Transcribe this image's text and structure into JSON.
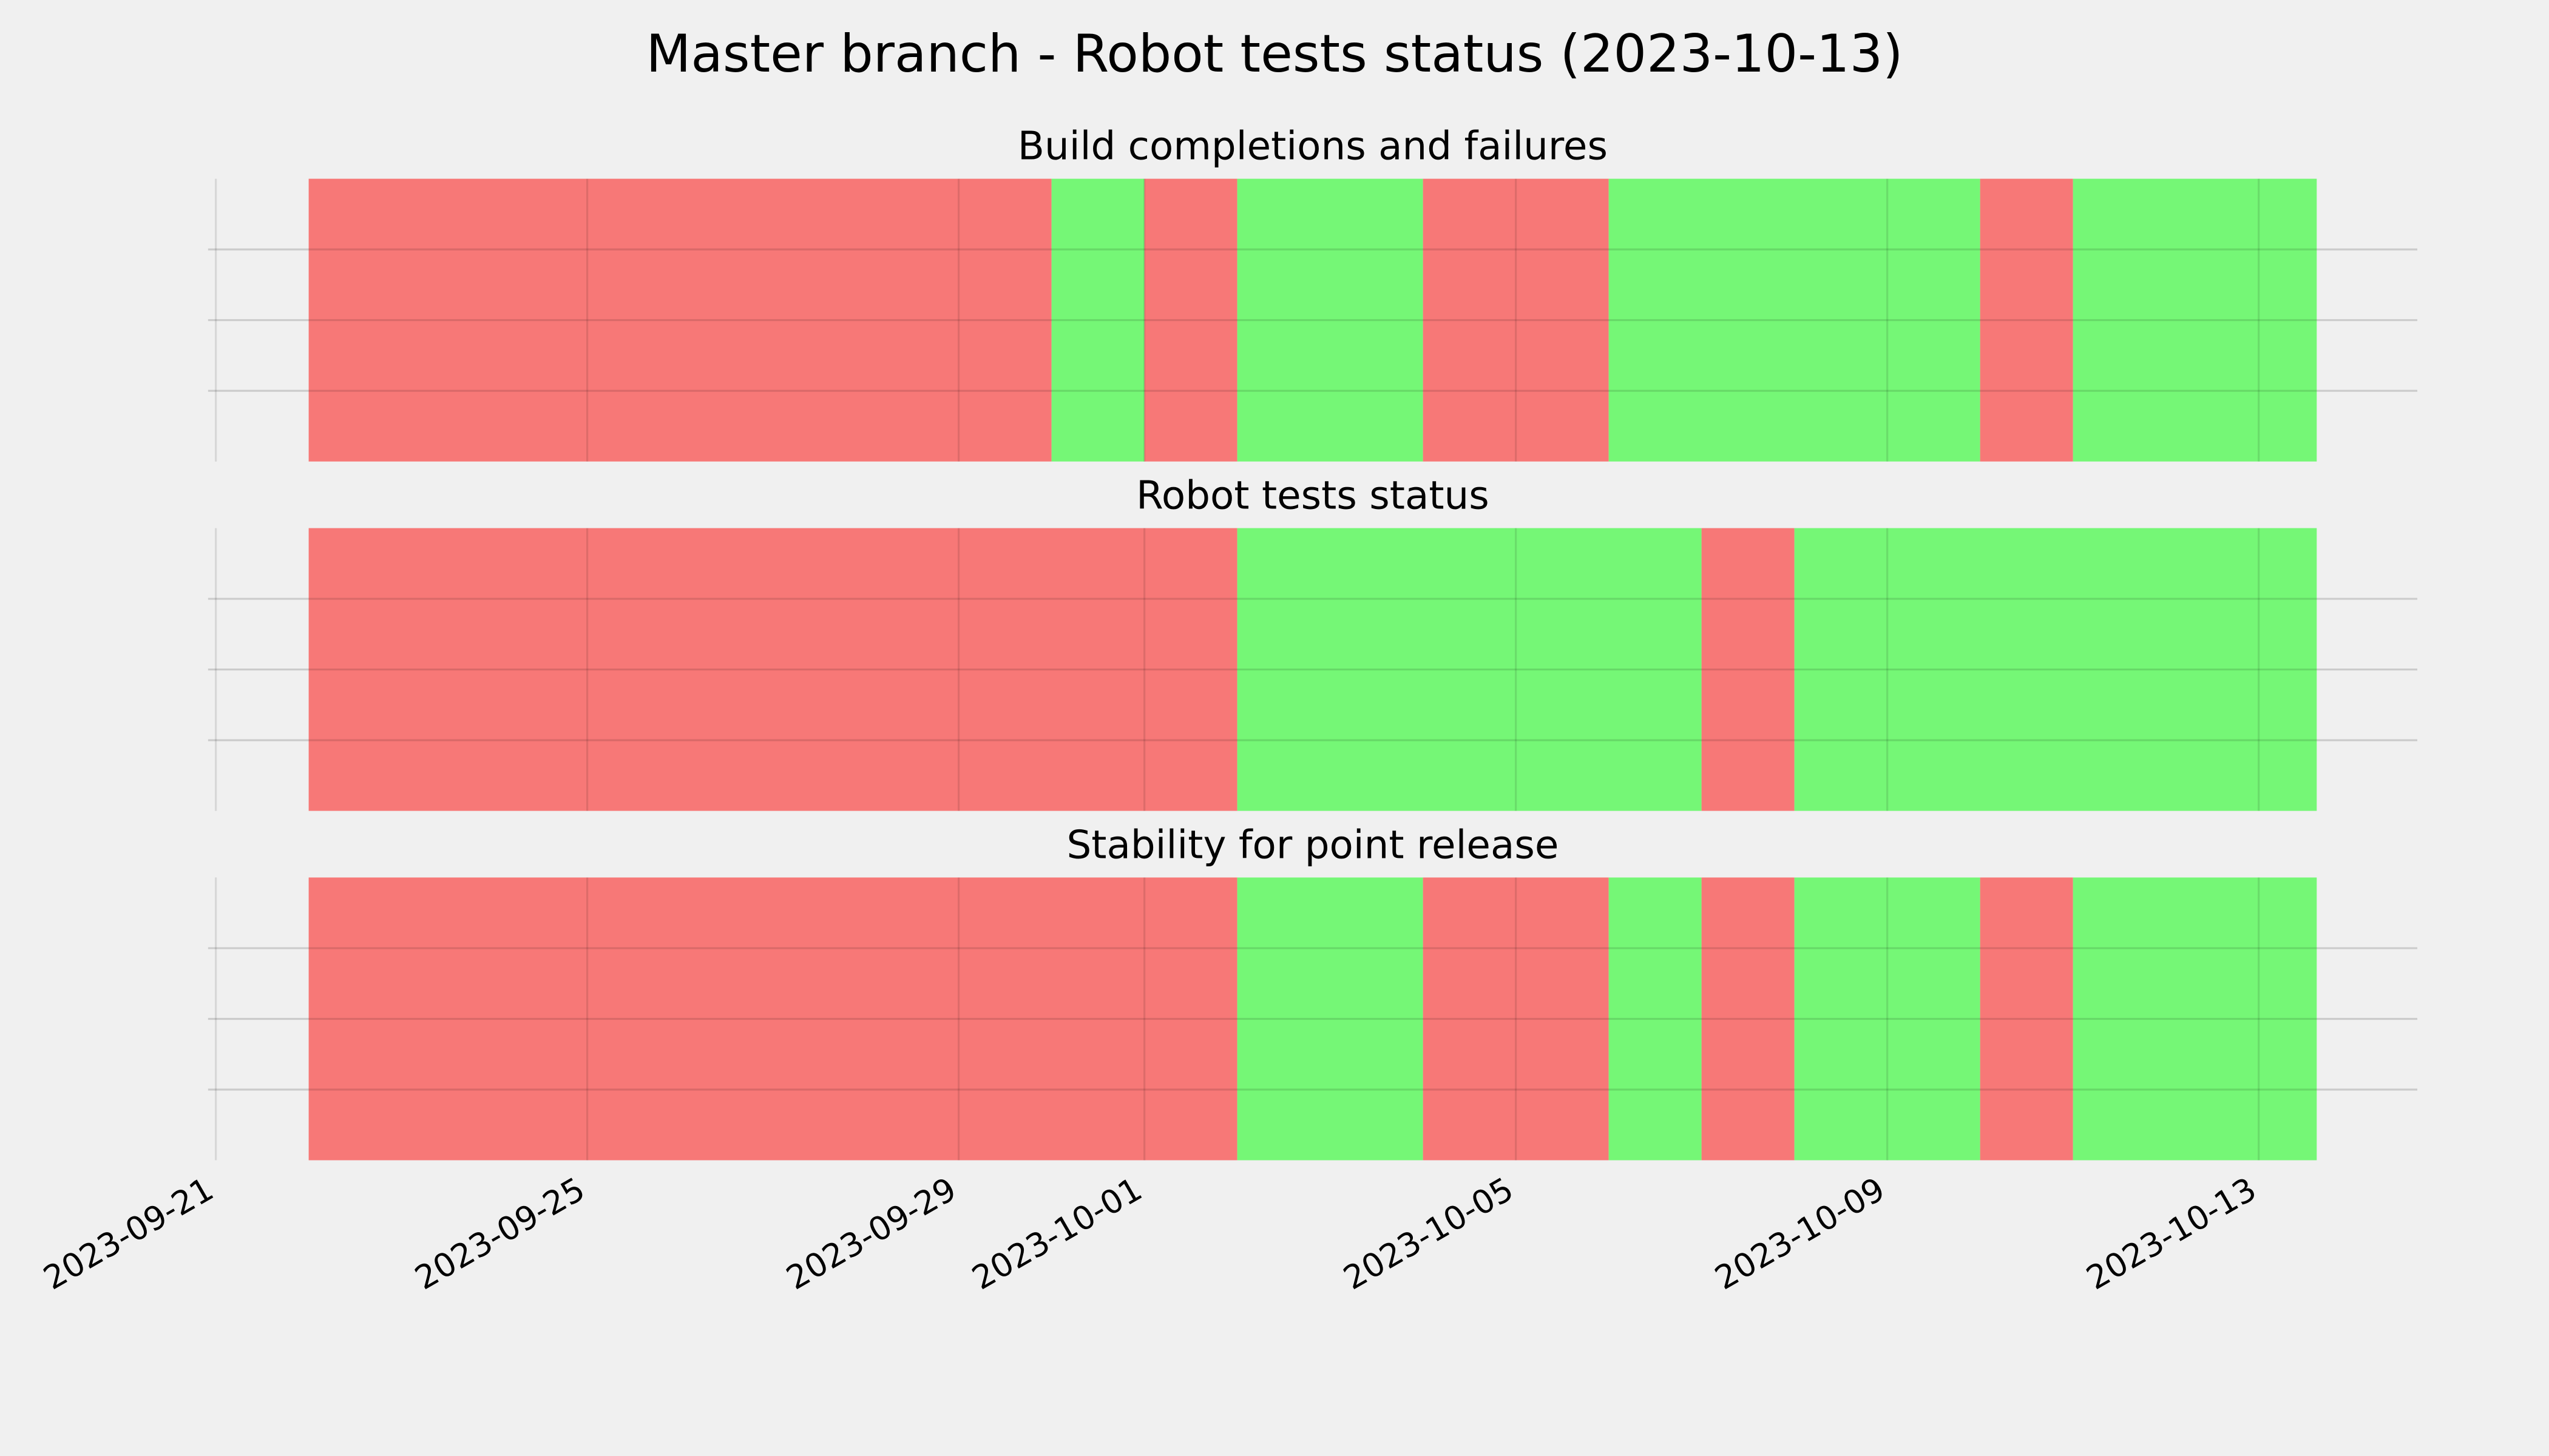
{
  "title": "Master branch - Robot tests status (2023-10-13)",
  "chart_data": [
    {
      "type": "timeline",
      "title": "Build completions and failures",
      "x": [
        "2023-09-22",
        "2023-09-30",
        "2023-10-01",
        "2023-10-02",
        "2023-10-04",
        "2023-10-06",
        "2023-10-10",
        "2023-10-11",
        "2023-10-13T15:00"
      ],
      "colors": [
        "#f77877",
        "#75f776",
        "#f77877",
        "#75f776",
        "#f77877",
        "#75f776",
        "#f77877",
        "#75f776"
      ],
      "xlim": [
        "2023-09-20T22:00",
        "2023-10-14T17:00"
      ],
      "xticks": [
        "2023-09-21",
        "2023-09-25",
        "2023-09-29",
        "2023-10-01",
        "2023-10-05",
        "2023-10-09",
        "2023-10-13"
      ],
      "ylim": [
        0,
        1
      ],
      "yticks": [
        0.25,
        0.5,
        0.75
      ],
      "grid": true
    },
    {
      "type": "timeline",
      "title": "Robot tests status",
      "x": [
        "2023-09-22",
        "2023-10-02",
        "2023-10-07",
        "2023-10-08",
        "2023-10-13T15:00"
      ],
      "colors": [
        "#f77877",
        "#75f776",
        "#f77877",
        "#75f776"
      ],
      "xlim": [
        "2023-09-20T22:00",
        "2023-10-14T17:00"
      ],
      "xticks": [
        "2023-09-21",
        "2023-09-25",
        "2023-09-29",
        "2023-10-01",
        "2023-10-05",
        "2023-10-09",
        "2023-10-13"
      ],
      "ylim": [
        0,
        1
      ],
      "yticks": [
        0.25,
        0.5,
        0.75
      ],
      "grid": true
    },
    {
      "type": "timeline",
      "title": "Stability for point release",
      "x": [
        "2023-09-22",
        "2023-10-02",
        "2023-10-04",
        "2023-10-06",
        "2023-10-07",
        "2023-10-08",
        "2023-10-10",
        "2023-10-11",
        "2023-10-13T15:00"
      ],
      "colors": [
        "#f77877",
        "#75f776",
        "#f77877",
        "#75f776",
        "#f77877",
        "#75f776",
        "#f77877",
        "#75f776"
      ],
      "xlim": [
        "2023-09-20T22:00",
        "2023-10-14T17:00"
      ],
      "xticks": [
        "2023-09-21",
        "2023-09-25",
        "2023-09-29",
        "2023-10-01",
        "2023-10-05",
        "2023-10-09",
        "2023-10-13"
      ],
      "ylim": [
        0,
        1
      ],
      "yticks": [
        0.25,
        0.5,
        0.75
      ],
      "grid": true
    }
  ]
}
